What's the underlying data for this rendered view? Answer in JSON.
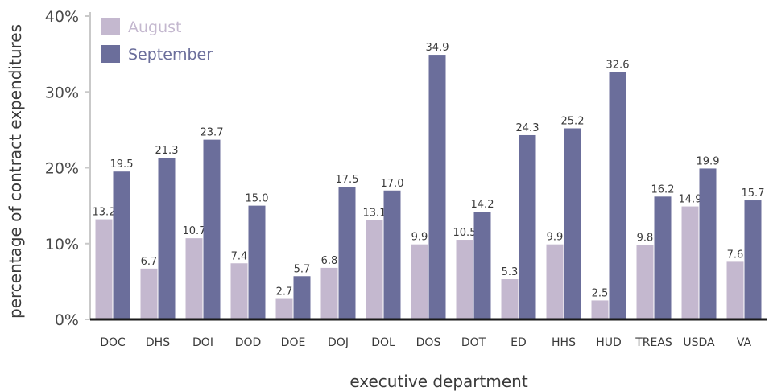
{
  "chart_data": {
    "type": "bar",
    "xlabel": "executive department",
    "ylabel": "percentage of contract expenditures",
    "ylim": [
      0,
      40
    ],
    "yticks": [
      "0%",
      "10%",
      "20%",
      "30%",
      "40%"
    ],
    "legend_position": "top-left",
    "categories": [
      "DOC",
      "DHS",
      "DOI",
      "DOD",
      "DOE",
      "DOJ",
      "DOL",
      "DOS",
      "DOT",
      "ED",
      "HHS",
      "HUD",
      "TREAS",
      "USDA",
      "VA"
    ],
    "series": [
      {
        "name": "August",
        "color": "#c4b8cf",
        "values": [
          13.2,
          6.7,
          10.7,
          7.4,
          2.7,
          6.8,
          13.1,
          9.9,
          10.5,
          5.3,
          9.9,
          2.5,
          9.8,
          14.9,
          7.6
        ],
        "labels": [
          "13.2",
          "6.7",
          "10.7",
          "7.4",
          "2.7",
          "6.8",
          "13.1",
          "9.9",
          "10.5",
          "5.3",
          "9.9",
          "2.5",
          "9.8",
          "14.9",
          "7.6"
        ]
      },
      {
        "name": "September",
        "color": "#6b6e9b",
        "values": [
          19.5,
          21.3,
          23.7,
          15.0,
          5.7,
          17.5,
          17.0,
          34.9,
          14.2,
          24.3,
          25.2,
          32.6,
          16.2,
          19.9,
          15.7
        ],
        "labels": [
          "19.5",
          "21.3",
          "23.7",
          "15.0",
          "5.7",
          "17.5",
          "17.0",
          "34.9",
          "14.2",
          "24.3",
          "25.2",
          "32.6",
          "16.2",
          "19.9",
          "15.7"
        ]
      }
    ]
  }
}
